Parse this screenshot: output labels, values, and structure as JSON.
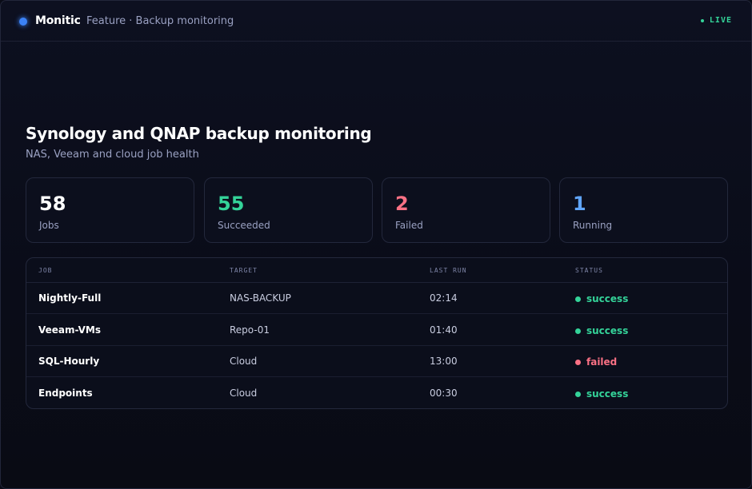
{
  "header": {
    "brand": "Monitic",
    "breadcrumb": "Feature · Backup monitoring",
    "live_label": "LIVE"
  },
  "page": {
    "title": "Synology and QNAP backup monitoring",
    "subtitle": "NAS, Veeam and cloud job health"
  },
  "stats": [
    {
      "value": "58",
      "label": "Jobs",
      "color": "#ffffff"
    },
    {
      "value": "55",
      "label": "Succeeded",
      "color": "#34d399"
    },
    {
      "value": "2",
      "label": "Failed",
      "color": "#fb7185"
    },
    {
      "value": "1",
      "label": "Running",
      "color": "#60a5fa"
    }
  ],
  "table": {
    "columns": [
      "JOB",
      "TARGET",
      "LAST RUN",
      "STATUS"
    ],
    "rows": [
      {
        "job": "Nightly-Full",
        "target": "NAS-BACKUP",
        "last_run": "02:14",
        "status": "success"
      },
      {
        "job": "Veeam-VMs",
        "target": "Repo-01",
        "last_run": "01:40",
        "status": "success"
      },
      {
        "job": "SQL-Hourly",
        "target": "Cloud",
        "last_run": "13:00",
        "status": "failed"
      },
      {
        "job": "Endpoints",
        "target": "Cloud",
        "last_run": "00:30",
        "status": "success"
      }
    ]
  },
  "colors": {
    "accent": "#3b82f6",
    "success": "#34d399",
    "failed": "#fb7185",
    "running": "#60a5fa"
  }
}
